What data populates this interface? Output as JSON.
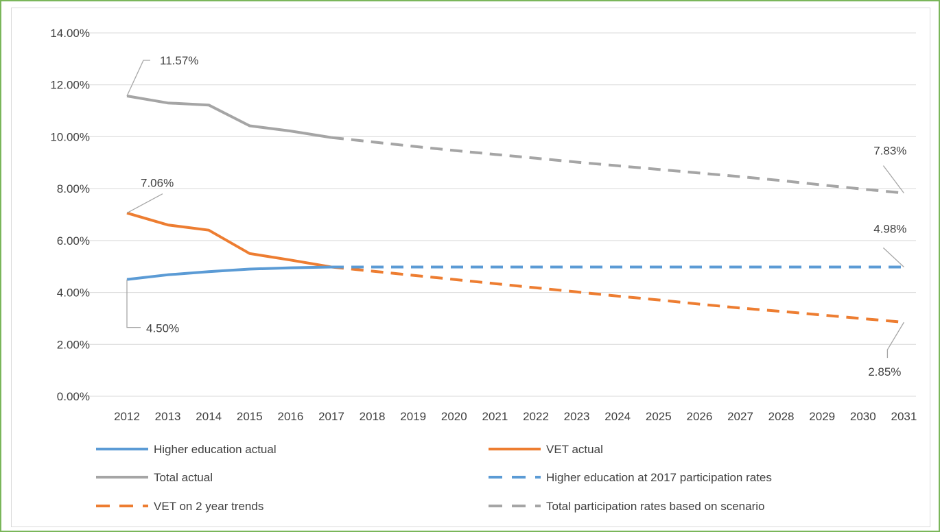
{
  "chart_data": {
    "type": "line",
    "x": [
      "2012",
      "2013",
      "2014",
      "2015",
      "2016",
      "2017",
      "2018",
      "2019",
      "2020",
      "2021",
      "2022",
      "2023",
      "2024",
      "2025",
      "2026",
      "2027",
      "2028",
      "2029",
      "2030",
      "2031"
    ],
    "ylim": [
      0,
      14
    ],
    "yticks": [
      "0.00%",
      "2.00%",
      "4.00%",
      "6.00%",
      "8.00%",
      "10.00%",
      "12.00%",
      "14.00%"
    ],
    "grid": true,
    "legend_position": "bottom",
    "series": [
      {
        "name": "Higher education actual",
        "color": "#5b9bd5",
        "style": "solid",
        "values": [
          4.5,
          4.68,
          4.8,
          4.9,
          4.95,
          4.98,
          null,
          null,
          null,
          null,
          null,
          null,
          null,
          null,
          null,
          null,
          null,
          null,
          null,
          null
        ]
      },
      {
        "name": "VET actual",
        "color": "#ed7d31",
        "style": "solid",
        "values": [
          7.06,
          6.6,
          6.4,
          5.5,
          5.25,
          4.98,
          null,
          null,
          null,
          null,
          null,
          null,
          null,
          null,
          null,
          null,
          null,
          null,
          null,
          null
        ]
      },
      {
        "name": "Total actual",
        "color": "#a5a5a5",
        "style": "solid",
        "values": [
          11.57,
          11.3,
          11.22,
          10.42,
          10.22,
          9.97,
          null,
          null,
          null,
          null,
          null,
          null,
          null,
          null,
          null,
          null,
          null,
          null,
          null,
          null
        ]
      },
      {
        "name": "Higher education at 2017 participation rates",
        "color": "#5b9bd5",
        "style": "dashed",
        "values": [
          null,
          null,
          null,
          null,
          null,
          4.98,
          4.98,
          4.98,
          4.98,
          4.98,
          4.98,
          4.98,
          4.98,
          4.98,
          4.98,
          4.98,
          4.98,
          4.98,
          4.98,
          4.98
        ]
      },
      {
        "name": "VET on 2 year trends",
        "color": "#ed7d31",
        "style": "dashed",
        "values": [
          null,
          null,
          null,
          null,
          null,
          4.98,
          4.82,
          4.66,
          4.5,
          4.34,
          4.18,
          4.02,
          3.86,
          3.71,
          3.55,
          3.4,
          3.27,
          3.13,
          2.99,
          2.85
        ]
      },
      {
        "name": "Total participation rates based on scenario",
        "color": "#a5a5a5",
        "style": "dashed",
        "values": [
          null,
          null,
          null,
          null,
          null,
          9.97,
          9.8,
          9.63,
          9.47,
          9.32,
          9.17,
          9.02,
          8.88,
          8.74,
          8.6,
          8.46,
          8.31,
          8.14,
          7.98,
          7.83
        ]
      }
    ],
    "annotations": [
      {
        "text": "11.57%",
        "x": "2012",
        "y": 11.57
      },
      {
        "text": "7.06%",
        "x": "2012",
        "y": 7.06
      },
      {
        "text": "4.50%",
        "x": "2012",
        "y": 4.5
      },
      {
        "text": "7.83%",
        "x": "2031",
        "y": 7.83
      },
      {
        "text": "4.98%",
        "x": "2031",
        "y": 4.98
      },
      {
        "text": "2.85%",
        "x": "2031",
        "y": 2.85
      }
    ]
  }
}
